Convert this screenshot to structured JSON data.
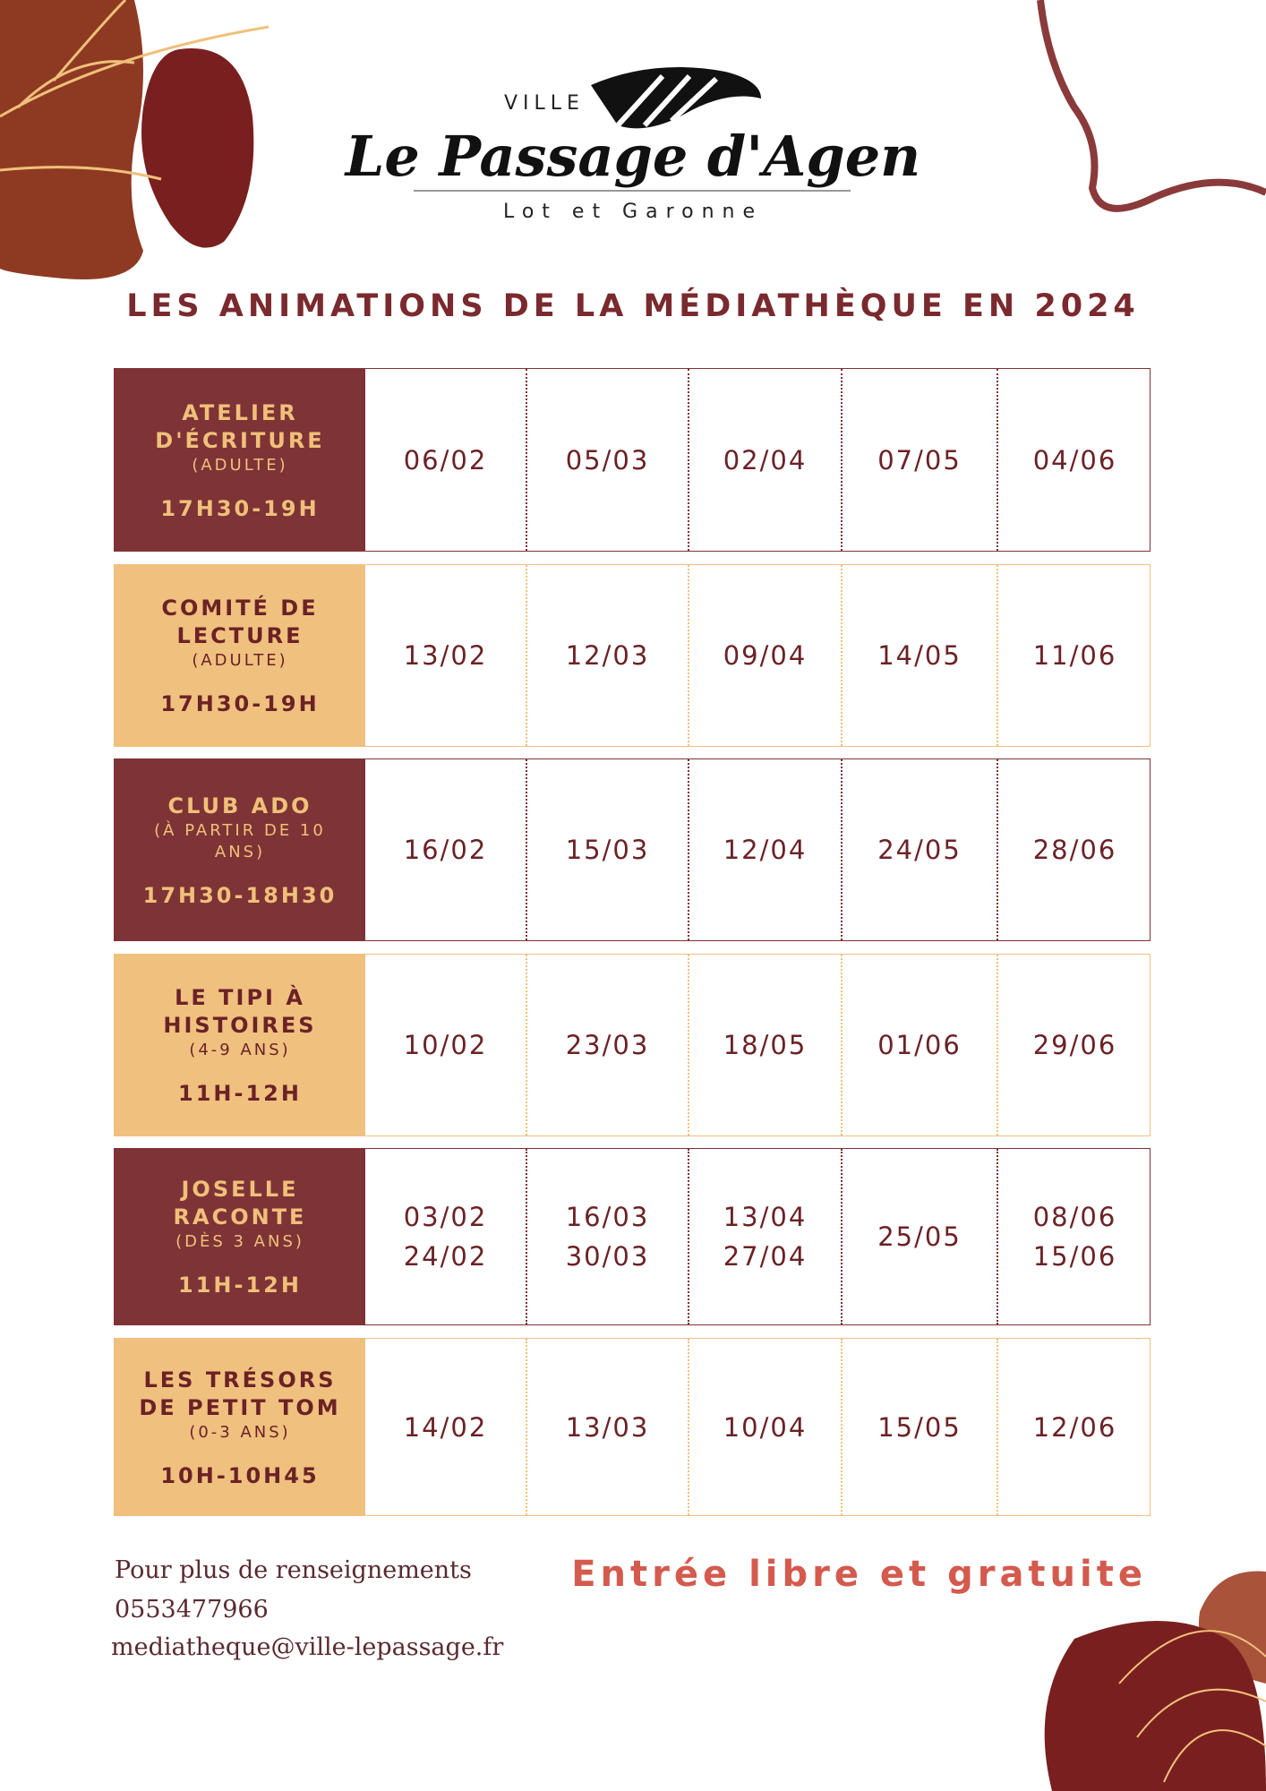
{
  "logo": {
    "prefix": "VILLE",
    "name": "Le Passage d'Agen",
    "region": "Lot et Garonne"
  },
  "title": "LES ANIMATIONS DE LA MÉDIATHÈQUE EN 2024",
  "table": {
    "rows": [
      {
        "label": "ATELIER D'ÉCRITURE",
        "age": "(ADULTE)",
        "hours": "17H30-19H",
        "dates": [
          [
            "06/02"
          ],
          [
            "05/03"
          ],
          [
            "02/04"
          ],
          [
            "07/05"
          ],
          [
            "04/06"
          ]
        ]
      },
      {
        "label": "COMITÉ DE LECTURE",
        "age": "(ADULTE)",
        "hours": "17H30-19H",
        "dates": [
          [
            "13/02"
          ],
          [
            "12/03"
          ],
          [
            "09/04"
          ],
          [
            "14/05"
          ],
          [
            "11/06"
          ]
        ]
      },
      {
        "label": "CLUB ADO",
        "age": "(À PARTIR DE 10 ANS)",
        "hours": "17H30-18H30",
        "dates": [
          [
            "16/02"
          ],
          [
            "15/03"
          ],
          [
            "12/04"
          ],
          [
            "24/05"
          ],
          [
            "28/06"
          ]
        ]
      },
      {
        "label": "LE TIPI À HISTOIRES",
        "age": "(4-9 ANS)",
        "hours": "11H-12H",
        "dates": [
          [
            "10/02"
          ],
          [
            "23/03"
          ],
          [
            "18/05"
          ],
          [
            "01/06"
          ],
          [
            "29/06"
          ]
        ]
      },
      {
        "label": "JOSELLE RACONTE",
        "age": "(DÈS 3 ANS)",
        "hours": "11H-12H",
        "dates": [
          [
            "03/02",
            "24/02"
          ],
          [
            "16/03",
            "30/03"
          ],
          [
            "13/04",
            "27/04"
          ],
          [
            "25/05"
          ],
          [
            "08/06",
            "15/06"
          ]
        ]
      },
      {
        "label": "LES TRÉSORS DE PETIT TOM",
        "age": "(0-3 ANS)",
        "hours": "10H-10H45",
        "dates": [
          [
            "14/02"
          ],
          [
            "13/03"
          ],
          [
            "10/04"
          ],
          [
            "15/05"
          ],
          [
            "12/06"
          ]
        ]
      }
    ]
  },
  "footer": {
    "info": "Pour plus de renseignements",
    "phone": "0553477966",
    "email": "mediatheque@ville-lepassage.fr",
    "entry": "Entrée libre et gratuite"
  }
}
